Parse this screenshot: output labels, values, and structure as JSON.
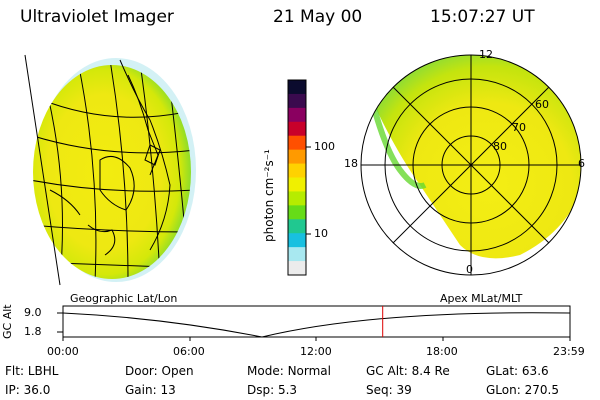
{
  "header": {
    "instrument": "Ultraviolet Imager",
    "date": "21 May 00",
    "time": "15:07:27 UT"
  },
  "colorbar": {
    "unit_label": "photon cm⁻²s⁻¹",
    "ticks": [
      "100",
      "10"
    ],
    "colors": [
      "#0b0b2e",
      "#3a0a4e",
      "#8a0060",
      "#c8002a",
      "#ff5000",
      "#ff9a00",
      "#ffd200",
      "#f0f000",
      "#b6ec00",
      "#66dc18",
      "#20c890",
      "#18c0e0",
      "#a8e8f0",
      "#ececec"
    ]
  },
  "polar_plot": {
    "mlt_labels": [
      "12",
      "18",
      "6",
      "0"
    ],
    "lat_labels": [
      "60",
      "70",
      "80"
    ]
  },
  "orbit_panel": {
    "left_label": "Geographic Lat/Lon",
    "right_label": "Apex MLat/MLT",
    "axis_title": "GC Alt",
    "alt_max": "9.0",
    "alt_min": "1.8",
    "time_ticks": [
      "00:00",
      "06:00",
      "12:00",
      "18:00",
      "23:59"
    ],
    "current_marker_time": "15:07:27"
  },
  "status": {
    "row1": [
      {
        "label": "Flt:",
        "value": "LBHL"
      },
      {
        "label": "Door:",
        "value": "Open"
      },
      {
        "label": "Mode:",
        "value": "Normal"
      },
      {
        "label": "GC Alt:",
        "value": "8.4 Re"
      },
      {
        "label": "GLat:",
        "value": "63.6"
      }
    ],
    "row2": [
      {
        "label": "IP:",
        "value": "36.0"
      },
      {
        "label": "Gain:",
        "value": "13"
      },
      {
        "label": "Dsp:",
        "value": "5.3"
      },
      {
        "label": "Seq:",
        "value": "39"
      },
      {
        "label": "GLon:",
        "value": "270.5"
      }
    ]
  }
}
